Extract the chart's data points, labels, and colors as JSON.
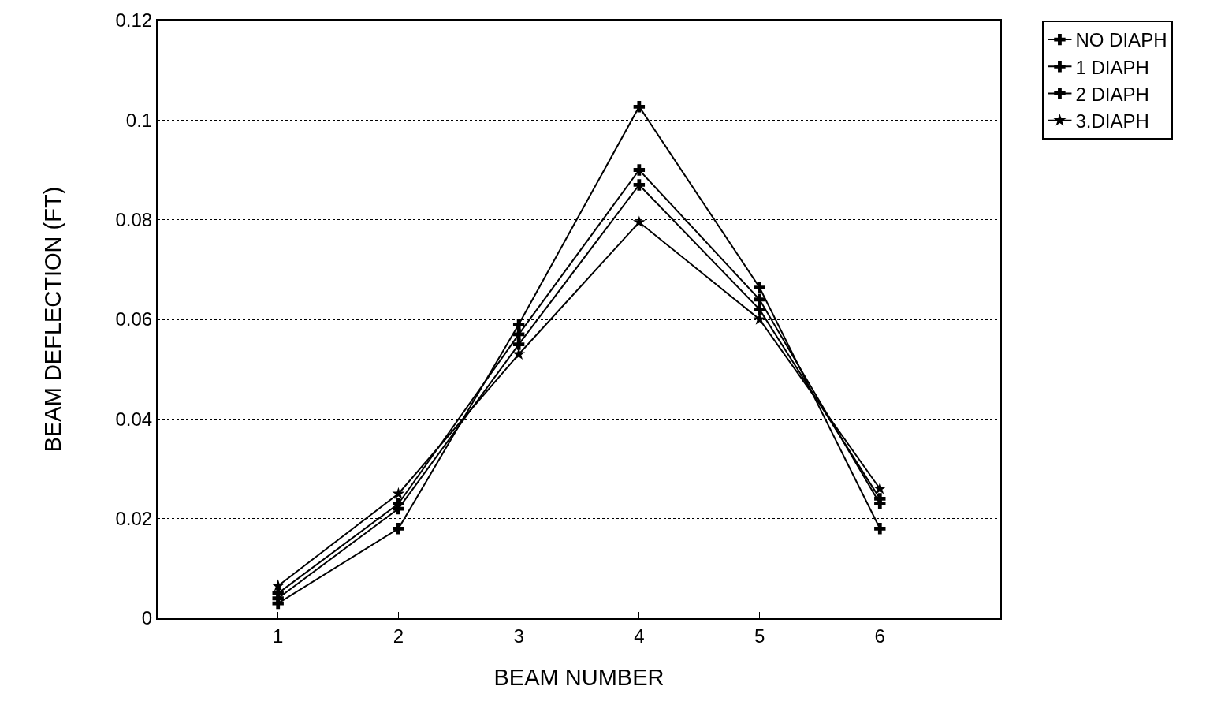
{
  "chart_data": {
    "type": "line",
    "xlabel": "BEAM NUMBER",
    "ylabel": "BEAM DEFLECTION (FT)",
    "x": [
      1,
      2,
      3,
      4,
      5,
      6
    ],
    "series": [
      {
        "name": "NO DIAPH",
        "color": "#000000",
        "marker": "cross",
        "values": [
          0.003,
          0.018,
          0.059,
          0.1027,
          0.0664,
          0.018
        ]
      },
      {
        "name": "1 DIAPH",
        "color": "#000000",
        "marker": "cross",
        "values": [
          0.005,
          0.023,
          0.057,
          0.09,
          0.064,
          0.023
        ]
      },
      {
        "name": "2 DIAPH",
        "color": "#000000",
        "marker": "cross",
        "values": [
          0.004,
          0.022,
          0.055,
          0.087,
          0.062,
          0.024
        ]
      },
      {
        "name": "3.DIAPH",
        "color": "#000000",
        "marker": "star",
        "values": [
          0.0065,
          0.025,
          0.053,
          0.0795,
          0.06,
          0.026
        ]
      }
    ],
    "xlim": [
      0,
      7
    ],
    "xticks": [
      1,
      2,
      3,
      4,
      5,
      6
    ],
    "ylim": [
      0,
      0.12
    ],
    "yticks": [
      0,
      0.02,
      0.04,
      0.06,
      0.08,
      0.1,
      0.12
    ],
    "grid": "y",
    "line_style": "solid",
    "legend": "top right"
  }
}
